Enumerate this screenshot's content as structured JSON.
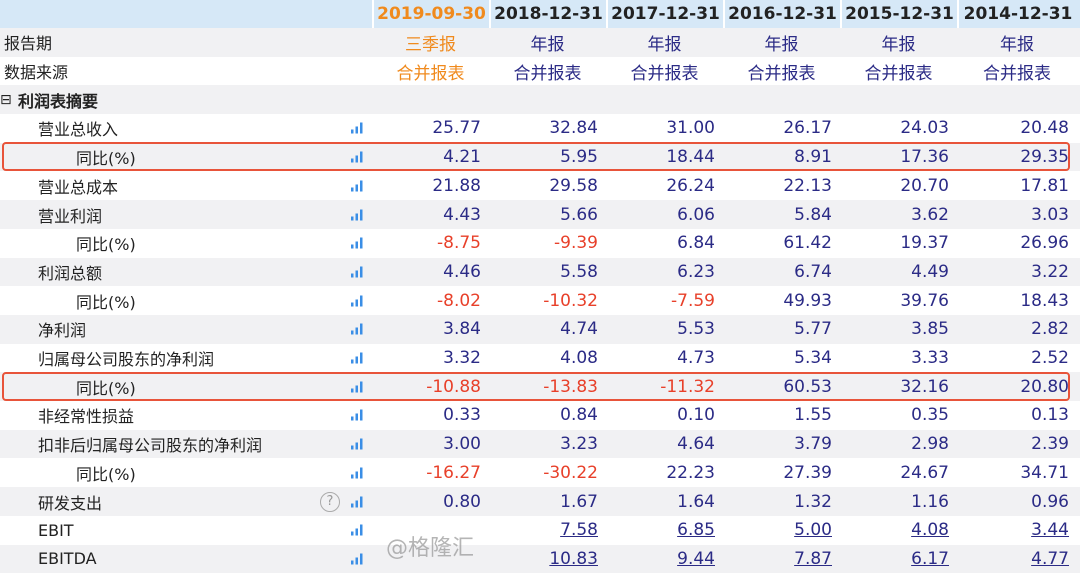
{
  "columns": [
    "2019-09-30",
    "2018-12-31",
    "2017-12-31",
    "2016-12-31",
    "2015-12-31",
    "2014-12-31"
  ],
  "report_period": {
    "label": "报告期",
    "values": [
      "三季报",
      "年报",
      "年报",
      "年报",
      "年报",
      "年报"
    ]
  },
  "data_source": {
    "label": "数据来源",
    "values": [
      "合并报表",
      "合并报表",
      "合并报表",
      "合并报表",
      "合并报表",
      "合并报表"
    ]
  },
  "section": {
    "toggle": "⊟",
    "label": "利润表摘要"
  },
  "rows": [
    {
      "label": "营业总收入",
      "indent": 1,
      "values": [
        "25.77",
        "32.84",
        "31.00",
        "26.17",
        "24.03",
        "20.48"
      ]
    },
    {
      "label": "同比(%)",
      "indent": 2,
      "highlight": true,
      "values": [
        "4.21",
        "5.95",
        "18.44",
        "8.91",
        "17.36",
        "29.35"
      ]
    },
    {
      "label": "营业总成本",
      "indent": 1,
      "values": [
        "21.88",
        "29.58",
        "26.24",
        "22.13",
        "20.70",
        "17.81"
      ]
    },
    {
      "label": "营业利润",
      "indent": 1,
      "values": [
        "4.43",
        "5.66",
        "6.06",
        "5.84",
        "3.62",
        "3.03"
      ]
    },
    {
      "label": "同比(%)",
      "indent": 2,
      "values": [
        "-8.75",
        "-9.39",
        "6.84",
        "61.42",
        "19.37",
        "26.96"
      ]
    },
    {
      "label": "利润总额",
      "indent": 1,
      "values": [
        "4.46",
        "5.58",
        "6.23",
        "6.74",
        "4.49",
        "3.22"
      ]
    },
    {
      "label": "同比(%)",
      "indent": 2,
      "values": [
        "-8.02",
        "-10.32",
        "-7.59",
        "49.93",
        "39.76",
        "18.43"
      ]
    },
    {
      "label": "净利润",
      "indent": 1,
      "values": [
        "3.84",
        "4.74",
        "5.53",
        "5.77",
        "3.85",
        "2.82"
      ]
    },
    {
      "label": "归属母公司股东的净利润",
      "indent": 1,
      "values": [
        "3.32",
        "4.08",
        "4.73",
        "5.34",
        "3.33",
        "2.52"
      ]
    },
    {
      "label": "同比(%)",
      "indent": 2,
      "highlight": true,
      "values": [
        "-10.88",
        "-13.83",
        "-11.32",
        "60.53",
        "32.16",
        "20.80"
      ]
    },
    {
      "label": "非经常性损益",
      "indent": 1,
      "values": [
        "0.33",
        "0.84",
        "0.10",
        "1.55",
        "0.35",
        "0.13"
      ]
    },
    {
      "label": "扣非后归属母公司股东的净利润",
      "indent": 1,
      "values": [
        "3.00",
        "3.23",
        "4.64",
        "3.79",
        "2.98",
        "2.39"
      ]
    },
    {
      "label": "同比(%)",
      "indent": 2,
      "values": [
        "-16.27",
        "-30.22",
        "22.23",
        "27.39",
        "24.67",
        "34.71"
      ]
    },
    {
      "label": "研发支出",
      "indent": 1,
      "help": "?",
      "values": [
        "0.80",
        "1.67",
        "1.64",
        "1.32",
        "1.16",
        "0.96"
      ]
    },
    {
      "label": "EBIT",
      "indent": 1,
      "link": true,
      "values": [
        "",
        "7.58",
        "6.85",
        "5.00",
        "4.08",
        "3.44"
      ]
    },
    {
      "label": "EBITDA",
      "indent": 1,
      "link": true,
      "values": [
        "",
        "10.83",
        "9.44",
        "7.87",
        "6.17",
        "4.77"
      ]
    }
  ],
  "colors": {
    "header_bg": "#d6e8f7",
    "current_period": "#f08a1d",
    "value": "#2b2b86",
    "negative": "#e8402a",
    "highlight_border": "#e8543a",
    "chart_icon": "#3a8ee6"
  },
  "icons": {
    "row_chart": "bar-chart-icon",
    "help": "question-circle-icon"
  },
  "watermark": "@格隆汇"
}
